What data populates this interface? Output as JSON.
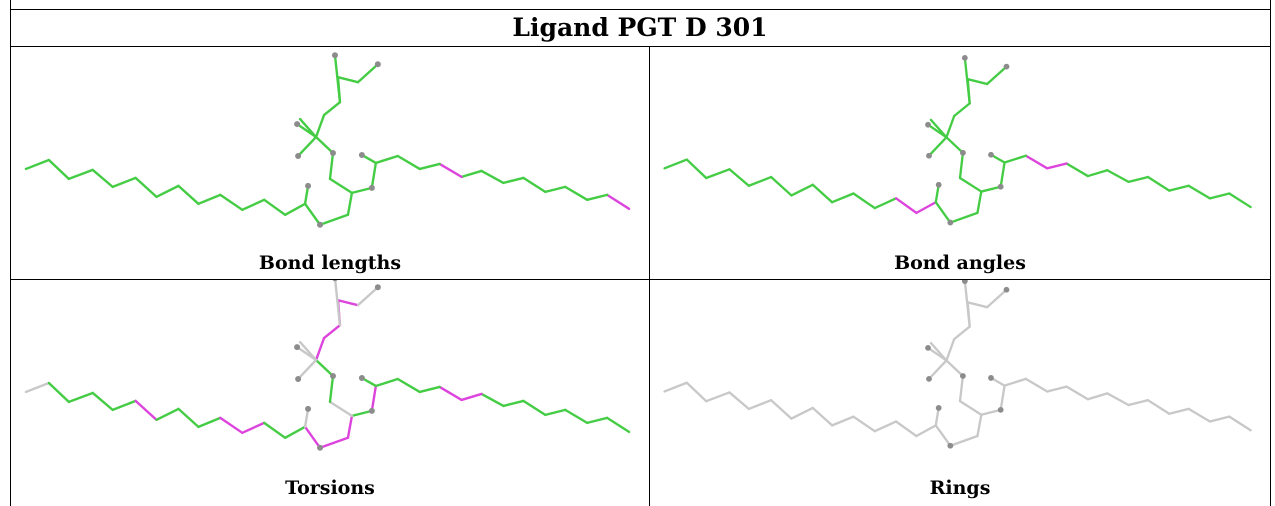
{
  "table": {
    "title": "Ligand PGT D 301",
    "panels": [
      {
        "caption": "Bond lengths",
        "bonds": [
          "g",
          "g",
          "g",
          "g",
          "g",
          "g",
          "g",
          "g",
          "g",
          "g",
          "g",
          "g",
          "g",
          "g",
          "m",
          "g",
          "g",
          "g",
          "g",
          "g",
          "g",
          "g",
          "m",
          "g",
          "g",
          "g",
          "g",
          "g",
          "g",
          "g",
          "g",
          "g",
          "g",
          "g",
          "g",
          "g",
          "g",
          "g",
          "g",
          "g",
          "g",
          "g",
          "g",
          "g",
          "g",
          "g",
          "g"
        ]
      },
      {
        "caption": "Bond angles",
        "bonds": [
          "g",
          "g",
          "g",
          "g",
          "g",
          "g",
          "g",
          "g",
          "g",
          "g",
          "g",
          "m",
          "m",
          "g",
          "g",
          "g",
          "g",
          "g",
          "g",
          "g",
          "g",
          "g",
          "g",
          "m",
          "m",
          "g",
          "g",
          "g",
          "g",
          "g",
          "g",
          "g",
          "g",
          "g",
          "g",
          "g",
          "g",
          "g",
          "g",
          "g",
          "g",
          "g",
          "g",
          "g",
          "g",
          "g",
          "g"
        ]
      },
      {
        "caption": "Torsions",
        "bonds": [
          "x",
          "g",
          "g",
          "g",
          "g",
          "m",
          "g",
          "g",
          "g",
          "m",
          "m",
          "g",
          "g",
          "m",
          "g",
          "g",
          "g",
          "g",
          "g",
          "g",
          "g",
          "m",
          "m",
          "g",
          "g",
          "g",
          "m",
          "m",
          "g",
          "m",
          "g",
          "x",
          "g",
          "g",
          "m",
          "m",
          "m",
          "m",
          "x",
          "x",
          "x",
          "x",
          "x",
          "x",
          "x",
          "x",
          "x"
        ]
      },
      {
        "caption": "Rings",
        "bonds": [
          "x",
          "x",
          "x",
          "x",
          "x",
          "x",
          "x",
          "x",
          "x",
          "x",
          "x",
          "x",
          "x",
          "x",
          "x",
          "x",
          "x",
          "x",
          "x",
          "x",
          "x",
          "x",
          "x",
          "x",
          "x",
          "x",
          "x",
          "x",
          "x",
          "x",
          "x",
          "x",
          "x",
          "x",
          "x",
          "x",
          "x",
          "x",
          "x",
          "x",
          "x",
          "x",
          "x",
          "x",
          "x",
          "x",
          "x"
        ]
      }
    ]
  },
  "colors": {
    "g": "#44cc44",
    "m": "#dd44dd",
    "x": "#c8c8c8",
    "atom": "#8c8c8c",
    "grid": "#000000"
  }
}
